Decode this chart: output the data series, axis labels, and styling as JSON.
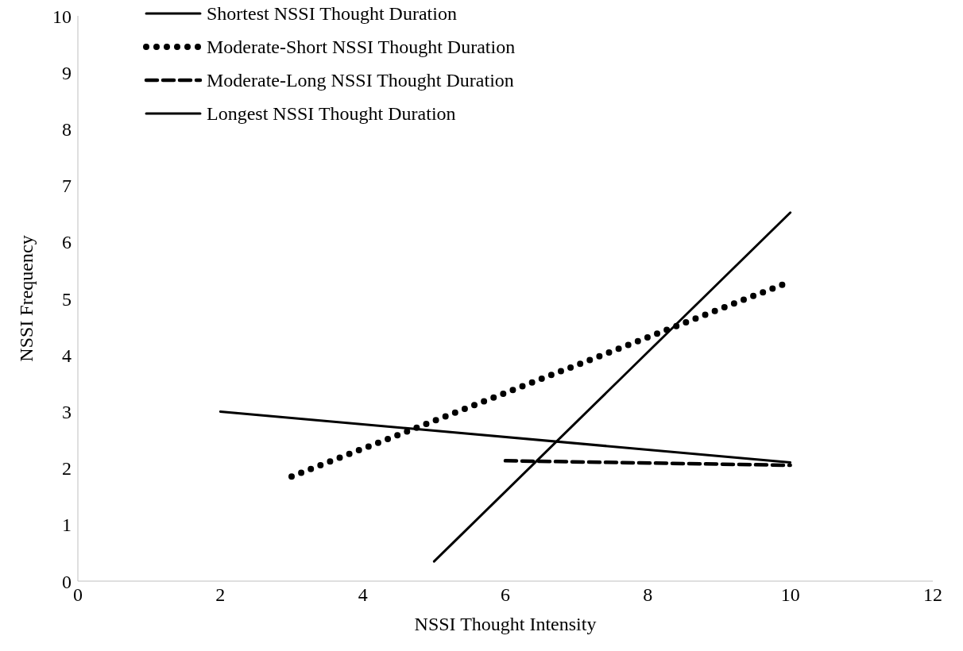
{
  "chart_data": {
    "type": "line",
    "xlabel": "NSSI Thought Intensity",
    "ylabel": "NSSI Frequency",
    "xlim": [
      0,
      12
    ],
    "xticks": [
      0,
      2,
      4,
      6,
      8,
      10,
      12
    ],
    "ylim": [
      0,
      10
    ],
    "yticks": [
      0,
      1,
      2,
      3,
      4,
      5,
      6,
      7,
      8,
      9,
      10
    ],
    "grid": false,
    "legend": "top left",
    "marker": "none",
    "series": [
      {
        "name": "Shortest NSSI Thought Duration",
        "color": "#000000",
        "line_style": "solid",
        "x": [
          2,
          10
        ],
        "values": [
          3.0,
          2.1
        ]
      },
      {
        "name": "Moderate-Short NSSI Thought Duration",
        "color": "#000000",
        "line_style": "dotted",
        "x": [
          3,
          10
        ],
        "values": [
          1.85,
          5.3
        ]
      },
      {
        "name": "Moderate-Long NSSI Thought Duration",
        "color": "#000000",
        "line_style": "dashed",
        "x": [
          6,
          10
        ],
        "values": [
          2.13,
          2.05
        ]
      },
      {
        "name": "Longest NSSI Thought Duration",
        "color": "#000000",
        "line_style": "solid",
        "x": [
          5,
          10
        ],
        "values": [
          0.35,
          6.52
        ]
      }
    ]
  }
}
